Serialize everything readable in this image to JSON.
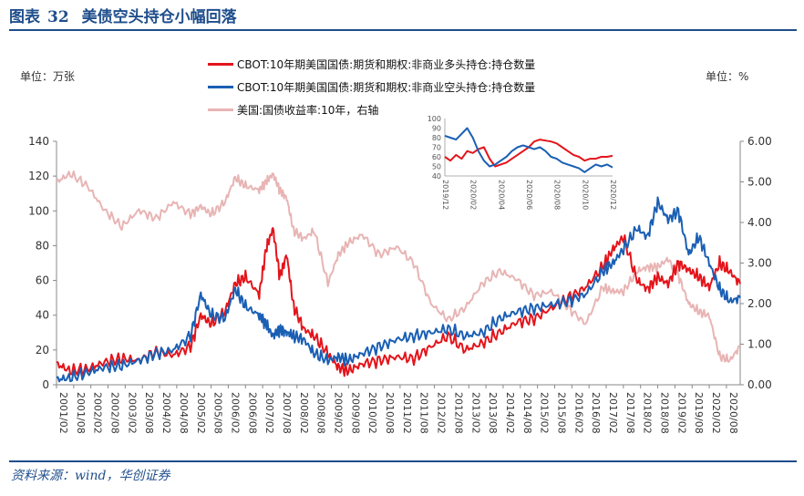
{
  "header": {
    "prefix": "图表",
    "number": "32",
    "title": "美债空头持仓小幅回落"
  },
  "source": "资料来源：wind，华创证券",
  "units": {
    "left": "单位：万张",
    "right": "单位：%"
  },
  "colors": {
    "long": "#e4141b",
    "short": "#1a5fb4",
    "yield": "#e8b4b4",
    "brand": "#1f4e8c"
  },
  "chart_data": [
    {
      "type": "line",
      "title": "美债空头持仓小幅回落",
      "x_ticks": [
        "2001/02",
        "2001/08",
        "2002/02",
        "2002/08",
        "2003/02",
        "2003/08",
        "2004/02",
        "2004/08",
        "2005/02",
        "2005/08",
        "2006/02",
        "2006/08",
        "2007/02",
        "2007/08",
        "2008/02",
        "2008/08",
        "2009/02",
        "2009/08",
        "2010/02",
        "2010/08",
        "2011/02",
        "2011/08",
        "2012/02",
        "2012/08",
        "2013/02",
        "2013/08",
        "2014/02",
        "2014/08",
        "2015/02",
        "2015/08",
        "2016/02",
        "2016/08",
        "2017/02",
        "2017/08",
        "2018/02",
        "2018/08",
        "2019/02",
        "2019/08",
        "2020/02",
        "2020/08"
      ],
      "ylim": [
        0,
        140
      ],
      "y_ticks": [
        0,
        20,
        40,
        60,
        80,
        100,
        120,
        140
      ],
      "y2lim": [
        0,
        6
      ],
      "y2_ticks": [
        "0.00",
        "1.00",
        "2.00",
        "3.00",
        "4.00",
        "5.00",
        "6.00"
      ],
      "legend": [
        "CBOT:10年期美国国债:期货和期权:非商业多头持仓:持仓数量",
        "CBOT:10年期美国国债:期货和期权:非商业空头持仓:持仓数量",
        "美国:国债收益率:10年，右轴"
      ],
      "x": [
        2001.1,
        2001.5,
        2002.0,
        2002.5,
        2003.0,
        2003.5,
        2004.0,
        2004.5,
        2005.0,
        2005.3,
        2005.6,
        2006.0,
        2006.3,
        2006.6,
        2007.0,
        2007.2,
        2007.4,
        2007.6,
        2007.8,
        2008.0,
        2008.3,
        2008.6,
        2009.0,
        2009.3,
        2009.6,
        2010.0,
        2010.5,
        2011.0,
        2011.5,
        2012.0,
        2012.5,
        2013.0,
        2013.5,
        2014.0,
        2014.5,
        2015.0,
        2015.5,
        2016.0,
        2016.5,
        2017.0,
        2017.3,
        2017.6,
        2018.0,
        2018.3,
        2018.6,
        2018.9,
        2019.2,
        2019.5,
        2019.8,
        2020.1,
        2020.4,
        2020.7,
        2021.0
      ],
      "series": [
        {
          "name": "CBOT:10年期美国国债:期货和期权:非商业多头持仓:持仓数量",
          "axis": "left",
          "values": [
            12,
            8,
            9,
            13,
            15,
            14,
            19,
            17,
            22,
            40,
            35,
            42,
            58,
            62,
            52,
            78,
            90,
            62,
            75,
            45,
            32,
            28,
            18,
            10,
            8,
            12,
            14,
            16,
            15,
            22,
            28,
            20,
            24,
            30,
            36,
            38,
            44,
            50,
            56,
            68,
            78,
            85,
            60,
            55,
            62,
            58,
            70,
            66,
            62,
            56,
            70,
            65,
            58
          ]
        },
        {
          "name": "CBOT:10年期美国国债:期货和期权:非商业空头持仓:持仓数量",
          "axis": "left",
          "values": [
            3,
            4,
            7,
            10,
            11,
            14,
            18,
            20,
            28,
            52,
            40,
            38,
            55,
            45,
            40,
            35,
            28,
            32,
            30,
            28,
            26,
            18,
            14,
            16,
            14,
            18,
            22,
            26,
            28,
            30,
            32,
            28,
            30,
            38,
            42,
            44,
            46,
            48,
            52,
            65,
            70,
            78,
            90,
            85,
            105,
            95,
            100,
            75,
            85,
            70,
            55,
            48,
            50
          ]
        },
        {
          "name": "美国:国债收益率:10年，右轴",
          "axis": "right",
          "values": [
            5.0,
            5.2,
            4.9,
            4.3,
            3.9,
            4.3,
            4.1,
            4.5,
            4.2,
            4.4,
            4.2,
            4.5,
            5.1,
            4.9,
            4.8,
            5.0,
            5.2,
            4.8,
            4.6,
            3.8,
            3.6,
            3.8,
            2.5,
            3.2,
            3.5,
            3.7,
            3.2,
            3.4,
            3.0,
            2.0,
            1.6,
            1.9,
            2.5,
            2.8,
            2.6,
            2.2,
            2.3,
            1.9,
            1.5,
            2.4,
            2.3,
            2.3,
            2.8,
            2.9,
            2.9,
            3.1,
            2.7,
            2.0,
            1.8,
            1.7,
            0.7,
            0.6,
            0.95
          ]
        }
      ]
    },
    {
      "type": "line",
      "inset": true,
      "x_ticks": [
        "2019/12",
        "2020/02",
        "2020/04",
        "2020/06",
        "2020/08",
        "2020/10",
        "2020/12"
      ],
      "ylim": [
        40,
        100
      ],
      "y_ticks": [
        40,
        50,
        60,
        70,
        80,
        90,
        100
      ],
      "x": [
        0,
        0.4,
        0.8,
        1.2,
        1.6,
        2.0,
        2.4,
        2.8,
        3.2,
        3.6,
        4.0,
        4.4,
        4.8,
        5.2,
        5.6,
        6.0,
        6.4,
        6.8,
        7.2,
        7.6,
        8.0,
        8.4,
        8.8,
        9.2,
        9.6,
        10.0,
        10.4,
        10.8,
        11.2,
        11.6,
        12.0
      ],
      "series": [
        {
          "name": "多头",
          "values": [
            60,
            56,
            62,
            58,
            66,
            64,
            68,
            70,
            58,
            50,
            52,
            54,
            58,
            62,
            66,
            70,
            76,
            78,
            77,
            76,
            74,
            70,
            66,
            62,
            60,
            56,
            58,
            58,
            60,
            60,
            61
          ]
        },
        {
          "name": "空头",
          "values": [
            82,
            80,
            78,
            84,
            90,
            80,
            66,
            56,
            50,
            52,
            56,
            60,
            66,
            70,
            72,
            70,
            68,
            70,
            66,
            60,
            58,
            54,
            52,
            50,
            48,
            44,
            48,
            52,
            50,
            52,
            49
          ]
        }
      ]
    }
  ]
}
